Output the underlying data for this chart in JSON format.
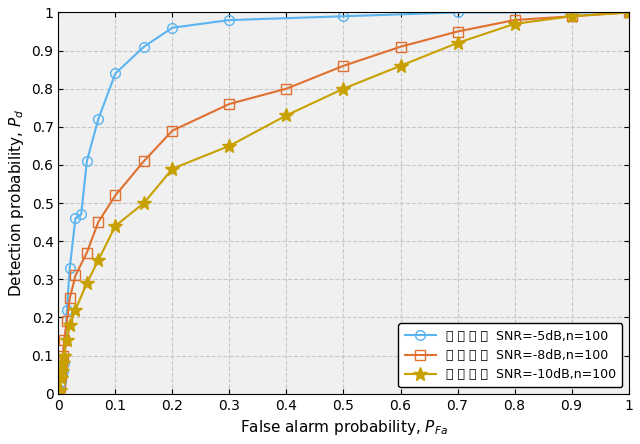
{
  "title": "",
  "xlabel": "False alarm probability, P_{Fa}",
  "ylabel": "Detection probability, P_d",
  "xlim": [
    0,
    1
  ],
  "ylim": [
    0,
    1
  ],
  "xticks": [
    0,
    0.1,
    0.2,
    0.3,
    0.4,
    0.5,
    0.6,
    0.7,
    0.8,
    0.9,
    1
  ],
  "yticks": [
    0,
    0.1,
    0.2,
    0.3,
    0.4,
    0.5,
    0.6,
    0.7,
    0.8,
    0.9,
    1
  ],
  "series": [
    {
      "label": "图 图 图 图  SNR=-5dB,n=100",
      "color": "#5ab4f0",
      "marker": "o",
      "markerfacecolor": "none",
      "markersize": 7,
      "linewidth": 1.5,
      "x": [
        0.0,
        0.002,
        0.004,
        0.006,
        0.008,
        0.01,
        0.015,
        0.02,
        0.03,
        0.04,
        0.05,
        0.07,
        0.1,
        0.15,
        0.2,
        0.3,
        0.5,
        0.7,
        0.9,
        1.0
      ],
      "y": [
        0.0,
        0.01,
        0.03,
        0.05,
        0.06,
        0.08,
        0.22,
        0.33,
        0.46,
        0.47,
        0.61,
        0.72,
        0.84,
        0.91,
        0.96,
        0.98,
        0.99,
        1.0,
        1.0,
        1.0
      ]
    },
    {
      "label": "图 图 图 图  SNR=-8dB,n=100",
      "color": "#e07030",
      "marker": "s",
      "markerfacecolor": "none",
      "markersize": 7,
      "linewidth": 1.5,
      "x": [
        0.0,
        0.002,
        0.004,
        0.006,
        0.008,
        0.01,
        0.015,
        0.02,
        0.03,
        0.05,
        0.07,
        0.1,
        0.15,
        0.2,
        0.3,
        0.4,
        0.5,
        0.6,
        0.7,
        0.8,
        0.9,
        1.0
      ],
      "y": [
        0.0,
        0.02,
        0.05,
        0.08,
        0.1,
        0.14,
        0.19,
        0.25,
        0.31,
        0.37,
        0.45,
        0.52,
        0.61,
        0.69,
        0.76,
        0.8,
        0.86,
        0.91,
        0.95,
        0.98,
        0.99,
        1.0
      ]
    },
    {
      "label": "图 图 图 图  SNR=-10dB,n=100",
      "color": "#c8a000",
      "marker": "*",
      "markerfacecolor": "#c8a000",
      "markersize": 10,
      "linewidth": 1.5,
      "x": [
        0.0,
        0.002,
        0.004,
        0.006,
        0.008,
        0.01,
        0.015,
        0.02,
        0.03,
        0.05,
        0.07,
        0.1,
        0.15,
        0.2,
        0.3,
        0.4,
        0.5,
        0.6,
        0.7,
        0.8,
        0.9,
        1.0
      ],
      "y": [
        0.0,
        0.01,
        0.04,
        0.06,
        0.08,
        0.1,
        0.14,
        0.18,
        0.22,
        0.29,
        0.35,
        0.44,
        0.5,
        0.59,
        0.65,
        0.73,
        0.8,
        0.86,
        0.92,
        0.97,
        0.99,
        1.0
      ]
    }
  ],
  "legend_loc": "lower right",
  "grid_color": "#c8c8c8",
  "grid_linestyle": "--",
  "background_color": "#ffffff",
  "plot_bg_color": "#f0f0f0",
  "figsize": [
    6.4,
    4.44
  ],
  "dpi": 100
}
